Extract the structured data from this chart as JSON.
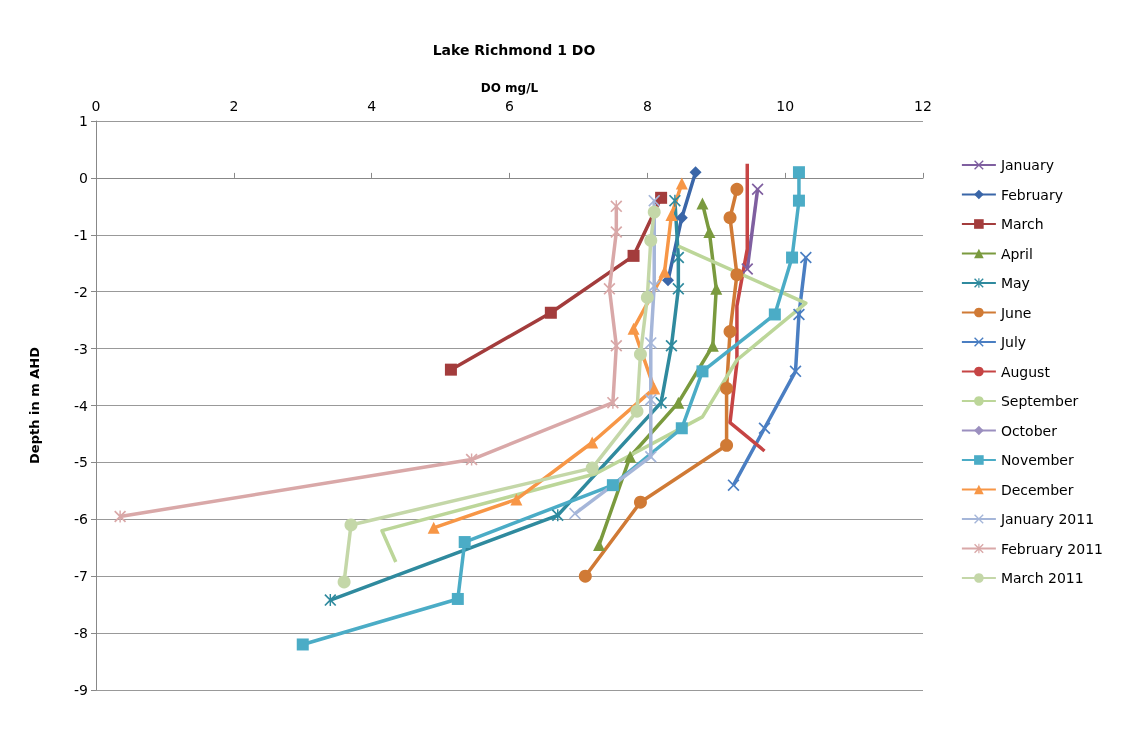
{
  "chart_data": {
    "type": "line",
    "title": "Lake Richmond 1 DO",
    "xlabel": "DO mg/L",
    "ylabel": "Depth in m AHD",
    "xlim": [
      0,
      12
    ],
    "xticks": [
      0,
      2,
      4,
      6,
      8,
      10,
      12
    ],
    "ylim": [
      -9,
      1
    ],
    "yticks": [
      -9,
      -8,
      -7,
      -6,
      -5,
      -4,
      -3,
      -2,
      -1,
      0,
      1
    ],
    "grid": "y",
    "legend": "right",
    "series": [
      {
        "name": "January",
        "color": "#7f5fa0",
        "marker": "cross",
        "x": [
          9.6,
          9.45
        ],
        "values": [
          -0.2,
          -1.6
        ]
      },
      {
        "name": "February",
        "color": "#3a66a8",
        "marker": "diamond",
        "x": [
          8.7,
          8.5,
          8.3
        ],
        "values": [
          0.1,
          -0.7,
          -1.8
        ]
      },
      {
        "name": "March",
        "color": "#a33c3c",
        "marker": "square",
        "x": [
          8.2,
          7.8,
          6.6,
          5.15
        ],
        "values": [
          -0.35,
          -1.37,
          -2.37,
          -3.37
        ]
      },
      {
        "name": "April",
        "color": "#7a9a3e",
        "marker": "triangle",
        "x": [
          8.8,
          8.9,
          9.0,
          8.95,
          8.45,
          7.75,
          7.3
        ],
        "values": [
          -0.45,
          -0.95,
          -1.95,
          -2.95,
          -3.95,
          -4.9,
          -6.45
        ]
      },
      {
        "name": "May",
        "color": "#2f8a9e",
        "marker": "star",
        "x": [
          8.4,
          8.45,
          8.45,
          8.35,
          8.2,
          6.7,
          3.4
        ],
        "values": [
          -0.4,
          -1.4,
          -1.95,
          -2.95,
          -3.95,
          -5.93,
          -7.42
        ]
      },
      {
        "name": "June",
        "color": "#d07a35",
        "marker": "circle",
        "x": [
          9.3,
          9.2,
          9.3,
          9.2,
          9.15,
          9.15,
          7.9,
          7.1
        ],
        "values": [
          -0.2,
          -0.7,
          -1.7,
          -2.7,
          -3.7,
          -4.7,
          -5.7,
          -7.0
        ]
      },
      {
        "name": "July",
        "color": "#4a7ec2",
        "marker": "cross",
        "x": [
          10.3,
          10.2,
          10.15,
          9.7,
          9.25
        ],
        "values": [
          -1.4,
          -2.4,
          -3.4,
          -4.4,
          -5.4
        ]
      },
      {
        "name": "August",
        "color": "#c64444",
        "marker": "none",
        "x": [
          9.45,
          9.45,
          9.3,
          9.3,
          9.2,
          9.7
        ],
        "values": [
          0.25,
          -1.25,
          -2.25,
          -3.25,
          -4.3,
          -4.8
        ]
      },
      {
        "name": "September",
        "color": "#bcd699",
        "marker": "none",
        "x": [
          8.45,
          10.3,
          9.3,
          8.8,
          7.25,
          4.15,
          4.35
        ],
        "values": [
          -1.2,
          -2.2,
          -3.2,
          -4.2,
          -5.2,
          -6.2,
          -6.75
        ]
      },
      {
        "name": "October",
        "color": "#9b8fbf",
        "marker": "diamond"
      },
      {
        "name": "November",
        "color": "#4bacc6",
        "marker": "square",
        "x": [
          10.2,
          10.2,
          10.1,
          9.85,
          8.8,
          8.5,
          7.5,
          5.35,
          5.25,
          3.0
        ],
        "values": [
          0.1,
          -0.4,
          -1.4,
          -2.4,
          -3.4,
          -4.4,
          -5.4,
          -6.4,
          -7.4,
          -8.2
        ]
      },
      {
        "name": "December",
        "color": "#f79646",
        "marker": "triangle",
        "x": [
          8.5,
          8.35,
          8.25,
          7.8,
          8.1,
          7.2,
          6.1,
          4.9
        ],
        "values": [
          -0.1,
          -0.65,
          -1.65,
          -2.65,
          -3.7,
          -4.65,
          -5.65,
          -6.15
        ]
      },
      {
        "name": "January 2011",
        "color": "#a5b6d9",
        "marker": "cross",
        "x": [
          8.1,
          8.1,
          8.05,
          8.05,
          8.05,
          6.95
        ],
        "values": [
          -0.4,
          -1.9,
          -2.9,
          -3.9,
          -4.9,
          -5.9
        ]
      },
      {
        "name": "February 2011",
        "color": "#d9a8a8",
        "marker": "star",
        "x": [
          7.55,
          7.55,
          7.45,
          7.55,
          7.5,
          5.45,
          0.35
        ],
        "values": [
          -0.5,
          -0.95,
          -1.95,
          -2.95,
          -3.95,
          -4.95,
          -5.95
        ]
      },
      {
        "name": "March 2011",
        "color": "#c4d7a8",
        "marker": "circle",
        "x": [
          8.1,
          8.05,
          8.0,
          7.9,
          7.85,
          7.2,
          3.7,
          3.6
        ],
        "values": [
          -0.6,
          -1.1,
          -2.1,
          -3.1,
          -4.1,
          -5.1,
          -6.1,
          -7.1
        ]
      }
    ]
  }
}
